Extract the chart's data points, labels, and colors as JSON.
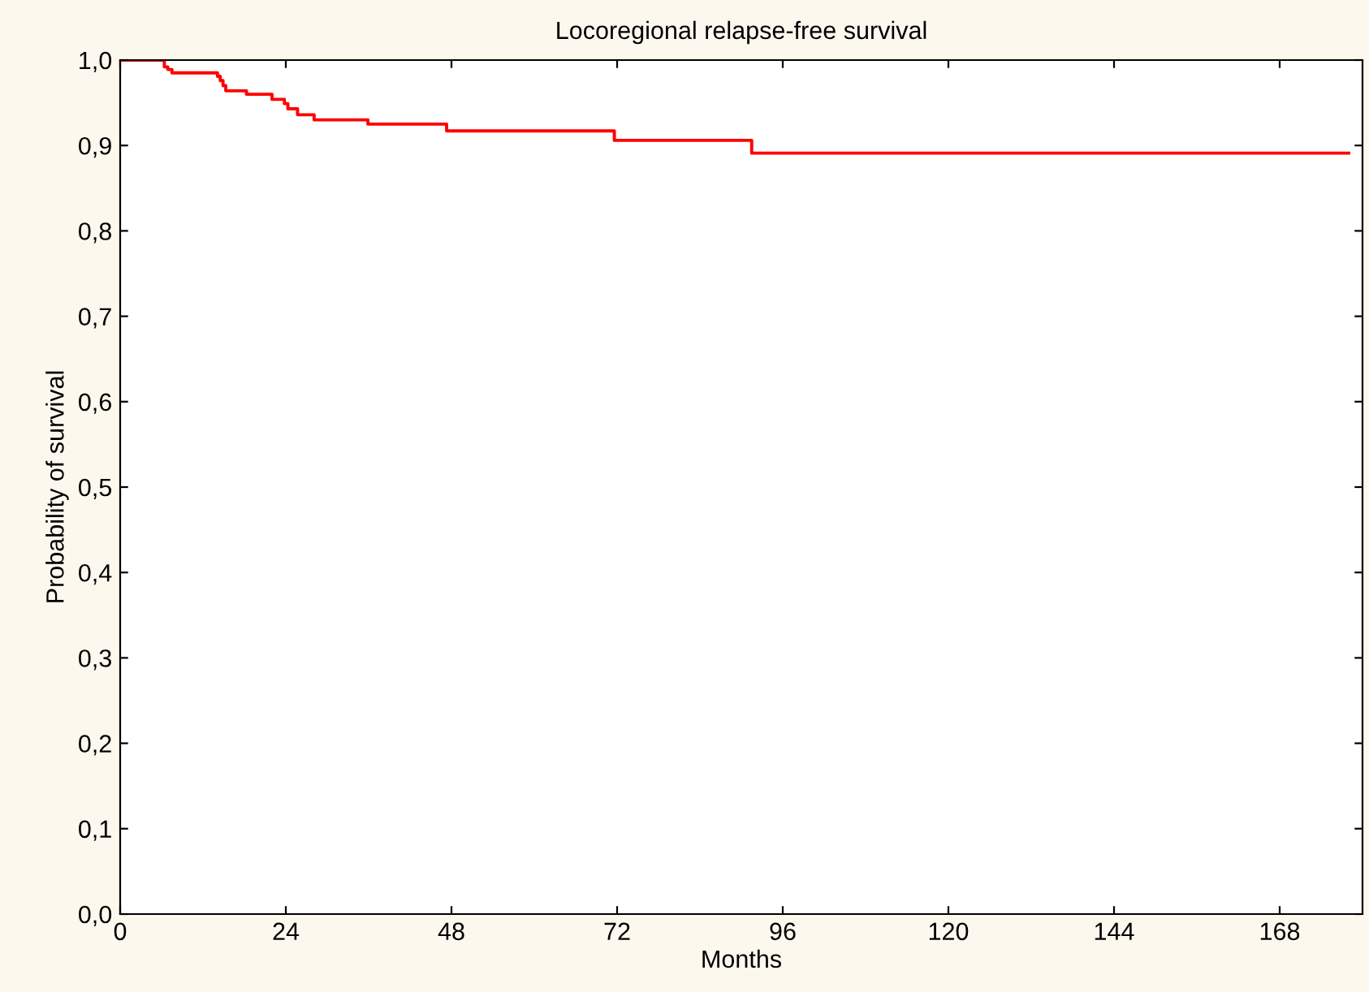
{
  "chart_data": {
    "type": "step",
    "title": "Locoregional relapse-free survival",
    "xlabel": "Months",
    "ylabel": "Probability of survival",
    "series": [
      {
        "color": "#ff0000",
        "x": [
          0,
          6.4,
          6.9,
          7.5,
          14.1,
          14.5,
          14.9,
          15.3,
          18.3,
          22.0,
          23.8,
          24.3,
          25.7,
          28.1,
          35.9,
          47.3,
          71.6,
          91.5,
          178
        ],
        "values": [
          1.0,
          0.992,
          0.989,
          0.985,
          0.981,
          0.976,
          0.97,
          0.964,
          0.96,
          0.954,
          0.949,
          0.943,
          0.936,
          0.93,
          0.925,
          0.917,
          0.906,
          0.891,
          0.891
        ]
      }
    ],
    "xlim": [
      0,
      180
    ],
    "xticks": [
      0,
      24,
      48,
      72,
      96,
      120,
      144,
      168
    ],
    "ylim": [
      0,
      1
    ],
    "yticks": [
      {
        "value": 0,
        "label": "0,0"
      },
      {
        "value": 0.1,
        "label": "0,1"
      },
      {
        "value": 0.2,
        "label": "0,2"
      },
      {
        "value": 0.3,
        "label": "0,3"
      },
      {
        "value": 0.4,
        "label": "0,4"
      },
      {
        "value": 0.5,
        "label": "0,5"
      },
      {
        "value": 0.6,
        "label": "0,6"
      },
      {
        "value": 0.7,
        "label": "0,7"
      },
      {
        "value": 0.8,
        "label": "0,8"
      },
      {
        "value": 0.9,
        "label": "0,9"
      },
      {
        "value": 1.0,
        "label": "1,0"
      }
    ],
    "grid": false,
    "legend": false
  }
}
